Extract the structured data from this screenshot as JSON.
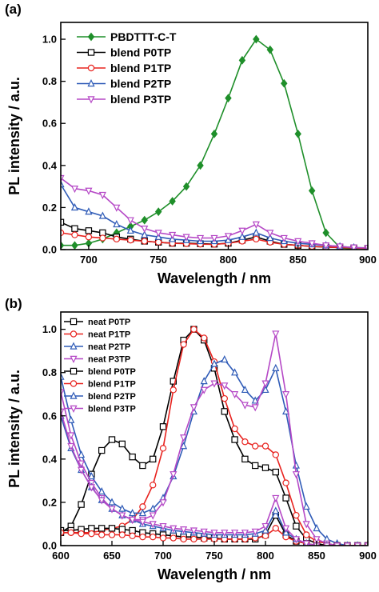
{
  "chart_data": [
    {
      "panel": "(a)",
      "type": "line",
      "xlabel": "Wavelength / nm",
      "ylabel": "PL intensity / a.u.",
      "xlim": [
        680,
        900
      ],
      "ylim": [
        0.0,
        1.08
      ],
      "xticks": [
        700,
        750,
        800,
        850,
        900
      ],
      "yticks": [
        0.0,
        0.2,
        0.4,
        0.6,
        0.8,
        1.0
      ],
      "ytick_labels": [
        "0.0",
        "0.2",
        "0.4",
        "0.6",
        "0.8",
        "1.0"
      ],
      "legend_position": "top-left",
      "series": [
        {
          "name": "PBDTTT-C-T",
          "color": "#1f8f2a",
          "marker": "diamond",
          "x": [
            680,
            690,
            700,
            710,
            720,
            730,
            740,
            750,
            760,
            770,
            780,
            790,
            800,
            810,
            820,
            830,
            840,
            850,
            860,
            870,
            880,
            890,
            900
          ],
          "y": [
            0.02,
            0.02,
            0.03,
            0.05,
            0.08,
            0.11,
            0.14,
            0.18,
            0.23,
            0.3,
            0.4,
            0.55,
            0.72,
            0.9,
            1.0,
            0.95,
            0.79,
            0.55,
            0.28,
            0.08,
            0.01,
            0.0,
            0.0
          ]
        },
        {
          "name": "blend P0TP",
          "color": "#000000",
          "marker": "square",
          "x": [
            680,
            690,
            700,
            710,
            720,
            730,
            740,
            750,
            760,
            770,
            780,
            790,
            800,
            810,
            820,
            830,
            840,
            850,
            860,
            870,
            880,
            890,
            900
          ],
          "y": [
            0.13,
            0.1,
            0.09,
            0.08,
            0.06,
            0.05,
            0.04,
            0.035,
            0.03,
            0.03,
            0.028,
            0.026,
            0.03,
            0.045,
            0.06,
            0.04,
            0.025,
            0.02,
            0.015,
            0.012,
            0.01,
            0.008,
            0.006
          ]
        },
        {
          "name": "blend P1TP",
          "color": "#e8231f",
          "marker": "circle",
          "x": [
            680,
            690,
            700,
            710,
            720,
            730,
            740,
            750,
            760,
            770,
            780,
            790,
            800,
            810,
            820,
            830,
            840,
            850,
            860,
            870,
            880,
            890,
            900
          ],
          "y": [
            0.08,
            0.07,
            0.06,
            0.055,
            0.05,
            0.045,
            0.04,
            0.035,
            0.03,
            0.028,
            0.026,
            0.025,
            0.03,
            0.04,
            0.05,
            0.035,
            0.025,
            0.02,
            0.015,
            0.012,
            0.01,
            0.008,
            0.006
          ]
        },
        {
          "name": "blend P2TP",
          "color": "#2f5bb7",
          "marker": "triangle",
          "x": [
            680,
            690,
            700,
            710,
            720,
            730,
            740,
            750,
            760,
            770,
            780,
            790,
            800,
            810,
            820,
            830,
            840,
            850,
            860,
            870,
            880,
            890,
            900
          ],
          "y": [
            0.31,
            0.2,
            0.18,
            0.16,
            0.12,
            0.09,
            0.07,
            0.06,
            0.05,
            0.045,
            0.04,
            0.04,
            0.045,
            0.06,
            0.08,
            0.055,
            0.04,
            0.03,
            0.025,
            0.02,
            0.015,
            0.01,
            0.008
          ]
        },
        {
          "name": "blend P3TP",
          "color": "#b548c6",
          "marker": "triangle-down",
          "x": [
            680,
            690,
            700,
            710,
            720,
            730,
            740,
            750,
            760,
            770,
            780,
            790,
            800,
            810,
            820,
            830,
            840,
            850,
            860,
            870,
            880,
            890,
            900
          ],
          "y": [
            0.34,
            0.29,
            0.28,
            0.26,
            0.2,
            0.14,
            0.1,
            0.08,
            0.07,
            0.06,
            0.055,
            0.055,
            0.065,
            0.09,
            0.12,
            0.08,
            0.055,
            0.04,
            0.03,
            0.02,
            0.015,
            0.01,
            0.008
          ]
        }
      ]
    },
    {
      "panel": "(b)",
      "type": "line",
      "xlabel": "Wavelength / nm",
      "ylabel": "PL intensity / a.u.",
      "xlim": [
        600,
        900
      ],
      "ylim": [
        0.0,
        1.08
      ],
      "xticks": [
        600,
        650,
        700,
        750,
        800,
        850,
        900
      ],
      "yticks": [
        0.0,
        0.2,
        0.4,
        0.6,
        0.8,
        1.0
      ],
      "ytick_labels": [
        "0.0",
        "0.2",
        "0.4",
        "0.6",
        "0.8",
        "1.0"
      ],
      "legend_position": "top-left",
      "series": [
        {
          "name": "neat P0TP",
          "color": "#000000",
          "marker": "square",
          "x": [
            600,
            610,
            620,
            630,
            640,
            650,
            660,
            670,
            680,
            690,
            700,
            710,
            720,
            730,
            740,
            750,
            760,
            770,
            780,
            790,
            800,
            810,
            820,
            830,
            840,
            850,
            860,
            870,
            880,
            890,
            900
          ],
          "y": [
            0.06,
            0.09,
            0.19,
            0.33,
            0.44,
            0.49,
            0.47,
            0.41,
            0.37,
            0.4,
            0.55,
            0.76,
            0.95,
            1.0,
            0.95,
            0.82,
            0.62,
            0.49,
            0.4,
            0.37,
            0.36,
            0.34,
            0.22,
            0.09,
            0.03,
            0.01,
            0.0,
            0.0,
            0.0,
            0.0,
            0.0
          ]
        },
        {
          "name": "neat P1TP",
          "color": "#e8231f",
          "marker": "circle",
          "x": [
            600,
            610,
            620,
            630,
            640,
            650,
            660,
            670,
            680,
            690,
            700,
            710,
            720,
            730,
            740,
            750,
            760,
            770,
            780,
            790,
            800,
            810,
            820,
            830,
            840,
            850,
            860,
            870,
            880,
            890,
            900
          ],
          "y": [
            0.06,
            0.06,
            0.06,
            0.06,
            0.07,
            0.08,
            0.09,
            0.12,
            0.18,
            0.28,
            0.45,
            0.72,
            0.93,
            1.0,
            0.96,
            0.85,
            0.68,
            0.54,
            0.48,
            0.46,
            0.46,
            0.42,
            0.29,
            0.14,
            0.05,
            0.02,
            0.01,
            0.0,
            0.0,
            0.0,
            0.0
          ]
        },
        {
          "name": "neat P2TP",
          "color": "#2f5bb7",
          "marker": "triangle",
          "x": [
            600,
            610,
            620,
            630,
            640,
            650,
            660,
            670,
            680,
            690,
            700,
            710,
            720,
            730,
            740,
            750,
            760,
            770,
            780,
            790,
            800,
            810,
            820,
            830,
            840,
            850,
            860,
            870,
            880,
            890,
            900
          ],
          "y": [
            0.78,
            0.58,
            0.42,
            0.32,
            0.25,
            0.2,
            0.17,
            0.15,
            0.15,
            0.17,
            0.22,
            0.32,
            0.46,
            0.62,
            0.76,
            0.84,
            0.86,
            0.8,
            0.72,
            0.67,
            0.72,
            0.82,
            0.62,
            0.37,
            0.18,
            0.08,
            0.03,
            0.01,
            0.0,
            0.0,
            0.0
          ]
        },
        {
          "name": "neat P3TP",
          "color": "#b548c6",
          "marker": "triangle-down",
          "x": [
            600,
            610,
            620,
            630,
            640,
            650,
            660,
            670,
            680,
            690,
            700,
            710,
            720,
            730,
            740,
            750,
            760,
            770,
            780,
            790,
            800,
            810,
            820,
            830,
            840,
            850,
            860,
            870,
            880,
            890,
            900
          ],
          "y": [
            0.71,
            0.51,
            0.38,
            0.29,
            0.22,
            0.17,
            0.14,
            0.12,
            0.12,
            0.14,
            0.2,
            0.33,
            0.5,
            0.64,
            0.72,
            0.75,
            0.74,
            0.7,
            0.65,
            0.64,
            0.75,
            0.98,
            0.7,
            0.33,
            0.1,
            0.03,
            0.01,
            0.0,
            0.0,
            0.0,
            0.0
          ]
        },
        {
          "name": "blend P0TP",
          "color": "#000000",
          "marker": "square",
          "x": [
            600,
            610,
            620,
            630,
            640,
            650,
            660,
            670,
            680,
            690,
            700,
            710,
            720,
            730,
            740,
            750,
            760,
            770,
            780,
            790,
            800,
            810,
            820,
            830,
            840,
            850,
            860,
            870,
            880,
            890,
            900
          ],
          "y": [
            0.07,
            0.07,
            0.075,
            0.08,
            0.08,
            0.08,
            0.075,
            0.07,
            0.06,
            0.055,
            0.05,
            0.045,
            0.04,
            0.04,
            0.035,
            0.035,
            0.03,
            0.03,
            0.03,
            0.03,
            0.05,
            0.14,
            0.05,
            0.02,
            0.01,
            0.0,
            0.0,
            0.0,
            0.0,
            0.0,
            0.0
          ]
        },
        {
          "name": "blend P1TP",
          "color": "#e8231f",
          "marker": "circle",
          "x": [
            600,
            610,
            620,
            630,
            640,
            650,
            660,
            670,
            680,
            690,
            700,
            710,
            720,
            730,
            740,
            750,
            760,
            770,
            780,
            790,
            800,
            810,
            820,
            830,
            840,
            850,
            860,
            870,
            880,
            890,
            900
          ],
          "y": [
            0.06,
            0.06,
            0.055,
            0.055,
            0.05,
            0.05,
            0.05,
            0.045,
            0.04,
            0.04,
            0.035,
            0.035,
            0.03,
            0.03,
            0.03,
            0.03,
            0.03,
            0.03,
            0.03,
            0.035,
            0.045,
            0.08,
            0.04,
            0.02,
            0.01,
            0.0,
            0.0,
            0.0,
            0.0,
            0.0,
            0.0
          ]
        },
        {
          "name": "blend P2TP",
          "color": "#2f5bb7",
          "marker": "triangle",
          "x": [
            600,
            610,
            620,
            630,
            640,
            650,
            660,
            670,
            680,
            690,
            700,
            710,
            720,
            730,
            740,
            750,
            760,
            770,
            780,
            790,
            800,
            810,
            820,
            830,
            840,
            850,
            860,
            870,
            880,
            890,
            900
          ],
          "y": [
            0.6,
            0.45,
            0.35,
            0.27,
            0.21,
            0.17,
            0.14,
            0.12,
            0.1,
            0.09,
            0.08,
            0.07,
            0.065,
            0.06,
            0.055,
            0.05,
            0.05,
            0.05,
            0.05,
            0.055,
            0.07,
            0.16,
            0.06,
            0.03,
            0.01,
            0.0,
            0.0,
            0.0,
            0.0,
            0.0,
            0.0
          ]
        },
        {
          "name": "blend P3TP",
          "color": "#b548c6",
          "marker": "triangle-down",
          "x": [
            600,
            610,
            620,
            630,
            640,
            650,
            660,
            670,
            680,
            690,
            700,
            710,
            720,
            730,
            740,
            750,
            760,
            770,
            780,
            790,
            800,
            810,
            820,
            830,
            840,
            850,
            860,
            870,
            880,
            890,
            900
          ],
          "y": [
            0.62,
            0.46,
            0.35,
            0.27,
            0.21,
            0.17,
            0.14,
            0.12,
            0.11,
            0.1,
            0.09,
            0.08,
            0.075,
            0.07,
            0.065,
            0.06,
            0.06,
            0.06,
            0.06,
            0.065,
            0.09,
            0.22,
            0.08,
            0.03,
            0.01,
            0.0,
            0.0,
            0.0,
            0.0,
            0.0,
            0.0
          ]
        }
      ]
    }
  ]
}
